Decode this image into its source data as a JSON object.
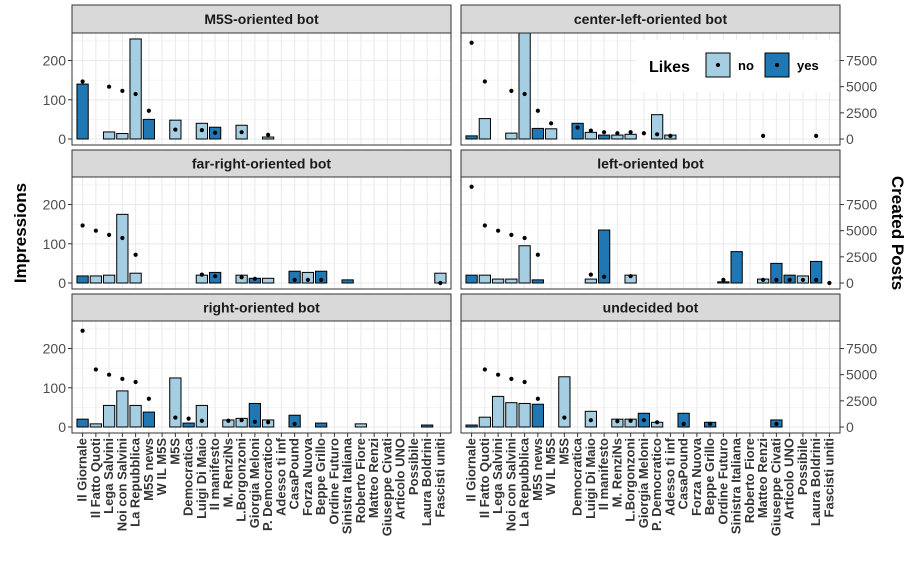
{
  "chart_data": {
    "type": "bar",
    "ylabel": "Impressions",
    "y2label": "Created Posts",
    "left_axis": {
      "ylim": [
        0,
        260
      ],
      "ticks": [
        0,
        100,
        200
      ]
    },
    "right_axis": {
      "ylim": [
        0,
        9750
      ],
      "ticks": [
        0,
        2500,
        5000,
        7500
      ]
    },
    "grid": true,
    "legend": {
      "title": "Likes",
      "position": "top-right",
      "entries": [
        {
          "label": "no",
          "color": "#a6cee3"
        },
        {
          "label": "yes",
          "color": "#1f78b4"
        }
      ]
    },
    "categories": [
      "Il Giornale",
      "Il Fatto Quoti",
      "Lega Salvini",
      "Noi con Salvini",
      "La Repubblica",
      "M5S news",
      "W IL M5S",
      "M5S",
      "Democratica",
      "Luigi Di Maio",
      "Il manifesto",
      "M. RenziNs",
      "L.Borgonzoni",
      "Giorgia Meloni",
      "P. Democratico",
      "Adesso ti inf",
      "CasaPound",
      "Forza Nuova",
      "Beppe Grillo",
      "Ordine Futuro",
      "Sinistra Italiana",
      "Roberto Fiore",
      "Matteo Renzi",
      "Giuseppe Civati",
      "Articolo UNO",
      "Possibile",
      "Laura Boldrini",
      "Fascisti uniti"
    ],
    "likes_yes": [
      true,
      false,
      false,
      false,
      false,
      true,
      false,
      false,
      true,
      false,
      true,
      false,
      false,
      true,
      false,
      false,
      true,
      false,
      true,
      true,
      true,
      false,
      false,
      true,
      true,
      false,
      true,
      false
    ],
    "created_posts": [
      9200,
      5500,
      5000,
      4600,
      4300,
      2700,
      1500,
      900,
      1100,
      800,
      650,
      550,
      650,
      550,
      450,
      0,
      500,
      0,
      400,
      0,
      0,
      0,
      300,
      0,
      0,
      0,
      300,
      0
    ],
    "panels": [
      {
        "title": "M5S-oriented bot",
        "impressions": [
          140,
          0,
          18,
          14,
          255,
          50,
          0,
          48,
          0,
          40,
          30,
          0,
          35,
          0,
          5,
          0,
          0,
          0,
          0,
          0,
          0,
          0,
          0,
          0,
          0,
          0,
          0,
          0
        ],
        "points": [
          [
            0,
            5500
          ],
          [
            2,
            5000
          ],
          [
            3,
            4600
          ],
          [
            4,
            4300
          ],
          [
            5,
            2700
          ],
          [
            7,
            900
          ],
          [
            9,
            850
          ],
          [
            10,
            600
          ],
          [
            12,
            650
          ],
          [
            14,
            400
          ]
        ]
      },
      {
        "title": "center-left-oriented bot",
        "impressions": [
          8,
          52,
          0,
          15,
          270,
          27,
          26,
          0,
          40,
          17,
          10,
          10,
          12,
          0,
          62,
          10,
          0,
          0,
          0,
          0,
          0,
          0,
          0,
          0,
          0,
          0,
          0,
          0
        ],
        "points": [
          [
            0,
            9200
          ],
          [
            1,
            5500
          ],
          [
            3,
            4600
          ],
          [
            4,
            4300
          ],
          [
            5,
            2700
          ],
          [
            6,
            1500
          ],
          [
            8,
            1100
          ],
          [
            9,
            800
          ],
          [
            10,
            650
          ],
          [
            11,
            550
          ],
          [
            12,
            650
          ],
          [
            13,
            550
          ],
          [
            14,
            450
          ],
          [
            15,
            300
          ],
          [
            22,
            300
          ],
          [
            26,
            300
          ]
        ]
      },
      {
        "title": "far-right-oriented bot",
        "impressions": [
          18,
          18,
          20,
          175,
          25,
          0,
          0,
          0,
          0,
          20,
          27,
          0,
          20,
          12,
          12,
          0,
          30,
          27,
          30,
          0,
          8,
          0,
          0,
          0,
          0,
          0,
          0,
          25
        ],
        "points": [
          [
            0,
            5500
          ],
          [
            1,
            5000
          ],
          [
            2,
            4600
          ],
          [
            3,
            4300
          ],
          [
            4,
            2700
          ],
          [
            9,
            800
          ],
          [
            10,
            650
          ],
          [
            12,
            550
          ],
          [
            13,
            400
          ],
          [
            16,
            300
          ],
          [
            17,
            300
          ],
          [
            18,
            300
          ],
          [
            27,
            0
          ]
        ]
      },
      {
        "title": "left-oriented bot",
        "impressions": [
          20,
          20,
          10,
          10,
          95,
          8,
          0,
          0,
          0,
          10,
          135,
          0,
          20,
          0,
          0,
          0,
          0,
          0,
          0,
          3,
          80,
          0,
          10,
          50,
          20,
          18,
          55,
          0
        ],
        "points": [
          [
            0,
            9200
          ],
          [
            1,
            5500
          ],
          [
            2,
            5000
          ],
          [
            3,
            4600
          ],
          [
            4,
            4300
          ],
          [
            5,
            2700
          ],
          [
            9,
            800
          ],
          [
            10,
            600
          ],
          [
            12,
            650
          ],
          [
            19,
            300
          ],
          [
            22,
            300
          ],
          [
            23,
            300
          ],
          [
            24,
            300
          ],
          [
            25,
            300
          ],
          [
            26,
            300
          ],
          [
            27,
            0
          ]
        ]
      },
      {
        "title": "right-oriented bot",
        "impressions": [
          20,
          8,
          55,
          92,
          55,
          38,
          0,
          125,
          10,
          55,
          0,
          18,
          22,
          60,
          18,
          0,
          30,
          0,
          10,
          0,
          0,
          8,
          0,
          0,
          0,
          0,
          5,
          0
        ],
        "points": [
          [
            0,
            9200
          ],
          [
            1,
            5500
          ],
          [
            2,
            5000
          ],
          [
            3,
            4600
          ],
          [
            4,
            4300
          ],
          [
            5,
            2700
          ],
          [
            7,
            900
          ],
          [
            8,
            800
          ],
          [
            9,
            600
          ],
          [
            11,
            600
          ],
          [
            12,
            650
          ],
          [
            13,
            500
          ],
          [
            14,
            450
          ],
          [
            16,
            300
          ]
        ]
      },
      {
        "title": "undecided bot",
        "impressions": [
          5,
          25,
          78,
          62,
          60,
          58,
          0,
          128,
          0,
          40,
          0,
          20,
          20,
          35,
          12,
          0,
          35,
          0,
          12,
          0,
          0,
          0,
          0,
          18,
          0,
          0,
          0,
          0
        ],
        "points": [
          [
            1,
            5500
          ],
          [
            2,
            5000
          ],
          [
            3,
            4600
          ],
          [
            4,
            4300
          ],
          [
            5,
            2700
          ],
          [
            7,
            900
          ],
          [
            9,
            650
          ],
          [
            11,
            550
          ],
          [
            12,
            600
          ],
          [
            13,
            650
          ],
          [
            14,
            450
          ],
          [
            16,
            300
          ],
          [
            18,
            300
          ],
          [
            23,
            300
          ]
        ]
      }
    ]
  }
}
